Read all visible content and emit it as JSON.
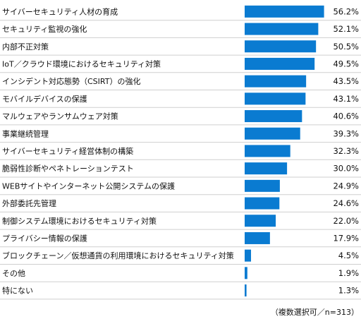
{
  "chart_data": {
    "type": "bar",
    "orientation": "horizontal",
    "categories": [
      "サイバーセキュリティ人材の育成",
      "セキュリティ監視の強化",
      "内部不正対策",
      "IoT／クラウド環境におけるセキュリティ対策",
      "インシデント対応態勢（CSIRT）の強化",
      "モバイルデバイスの保護",
      "マルウェアやランサムウェア対策",
      "事業継続管理",
      "サイバーセキュリティ経営体制の構築",
      "脆弱性診断やペネトレーションテスト",
      "WEBサイトやインターネット公開システムの保護",
      "外部委託先管理",
      "制御システム環境におけるセキュリティ対策",
      "プライバシー情報の保護",
      "ブロックチェーン／仮想通貨の利用環境におけるセキュリティ対策",
      "その他",
      "特にない"
    ],
    "values": [
      56.2,
      52.1,
      50.5,
      49.5,
      43.5,
      43.1,
      40.6,
      39.3,
      32.3,
      30.0,
      24.9,
      24.6,
      22.0,
      17.9,
      4.5,
      1.9,
      1.3
    ],
    "value_labels": [
      "56.2%",
      "52.1%",
      "50.5%",
      "49.5%",
      "43.5%",
      "43.1%",
      "40.6%",
      "39.3%",
      "32.3%",
      "30.0%",
      "24.9%",
      "24.6%",
      "22.0%",
      "17.9%",
      "4.5%",
      "1.9%",
      "1.3%"
    ],
    "xlim": [
      0,
      60
    ],
    "bar_color": "#0a7bd1",
    "divider_color": "#cfcfcf",
    "grid": false
  },
  "footnote": "（複数選択可／n=313）"
}
